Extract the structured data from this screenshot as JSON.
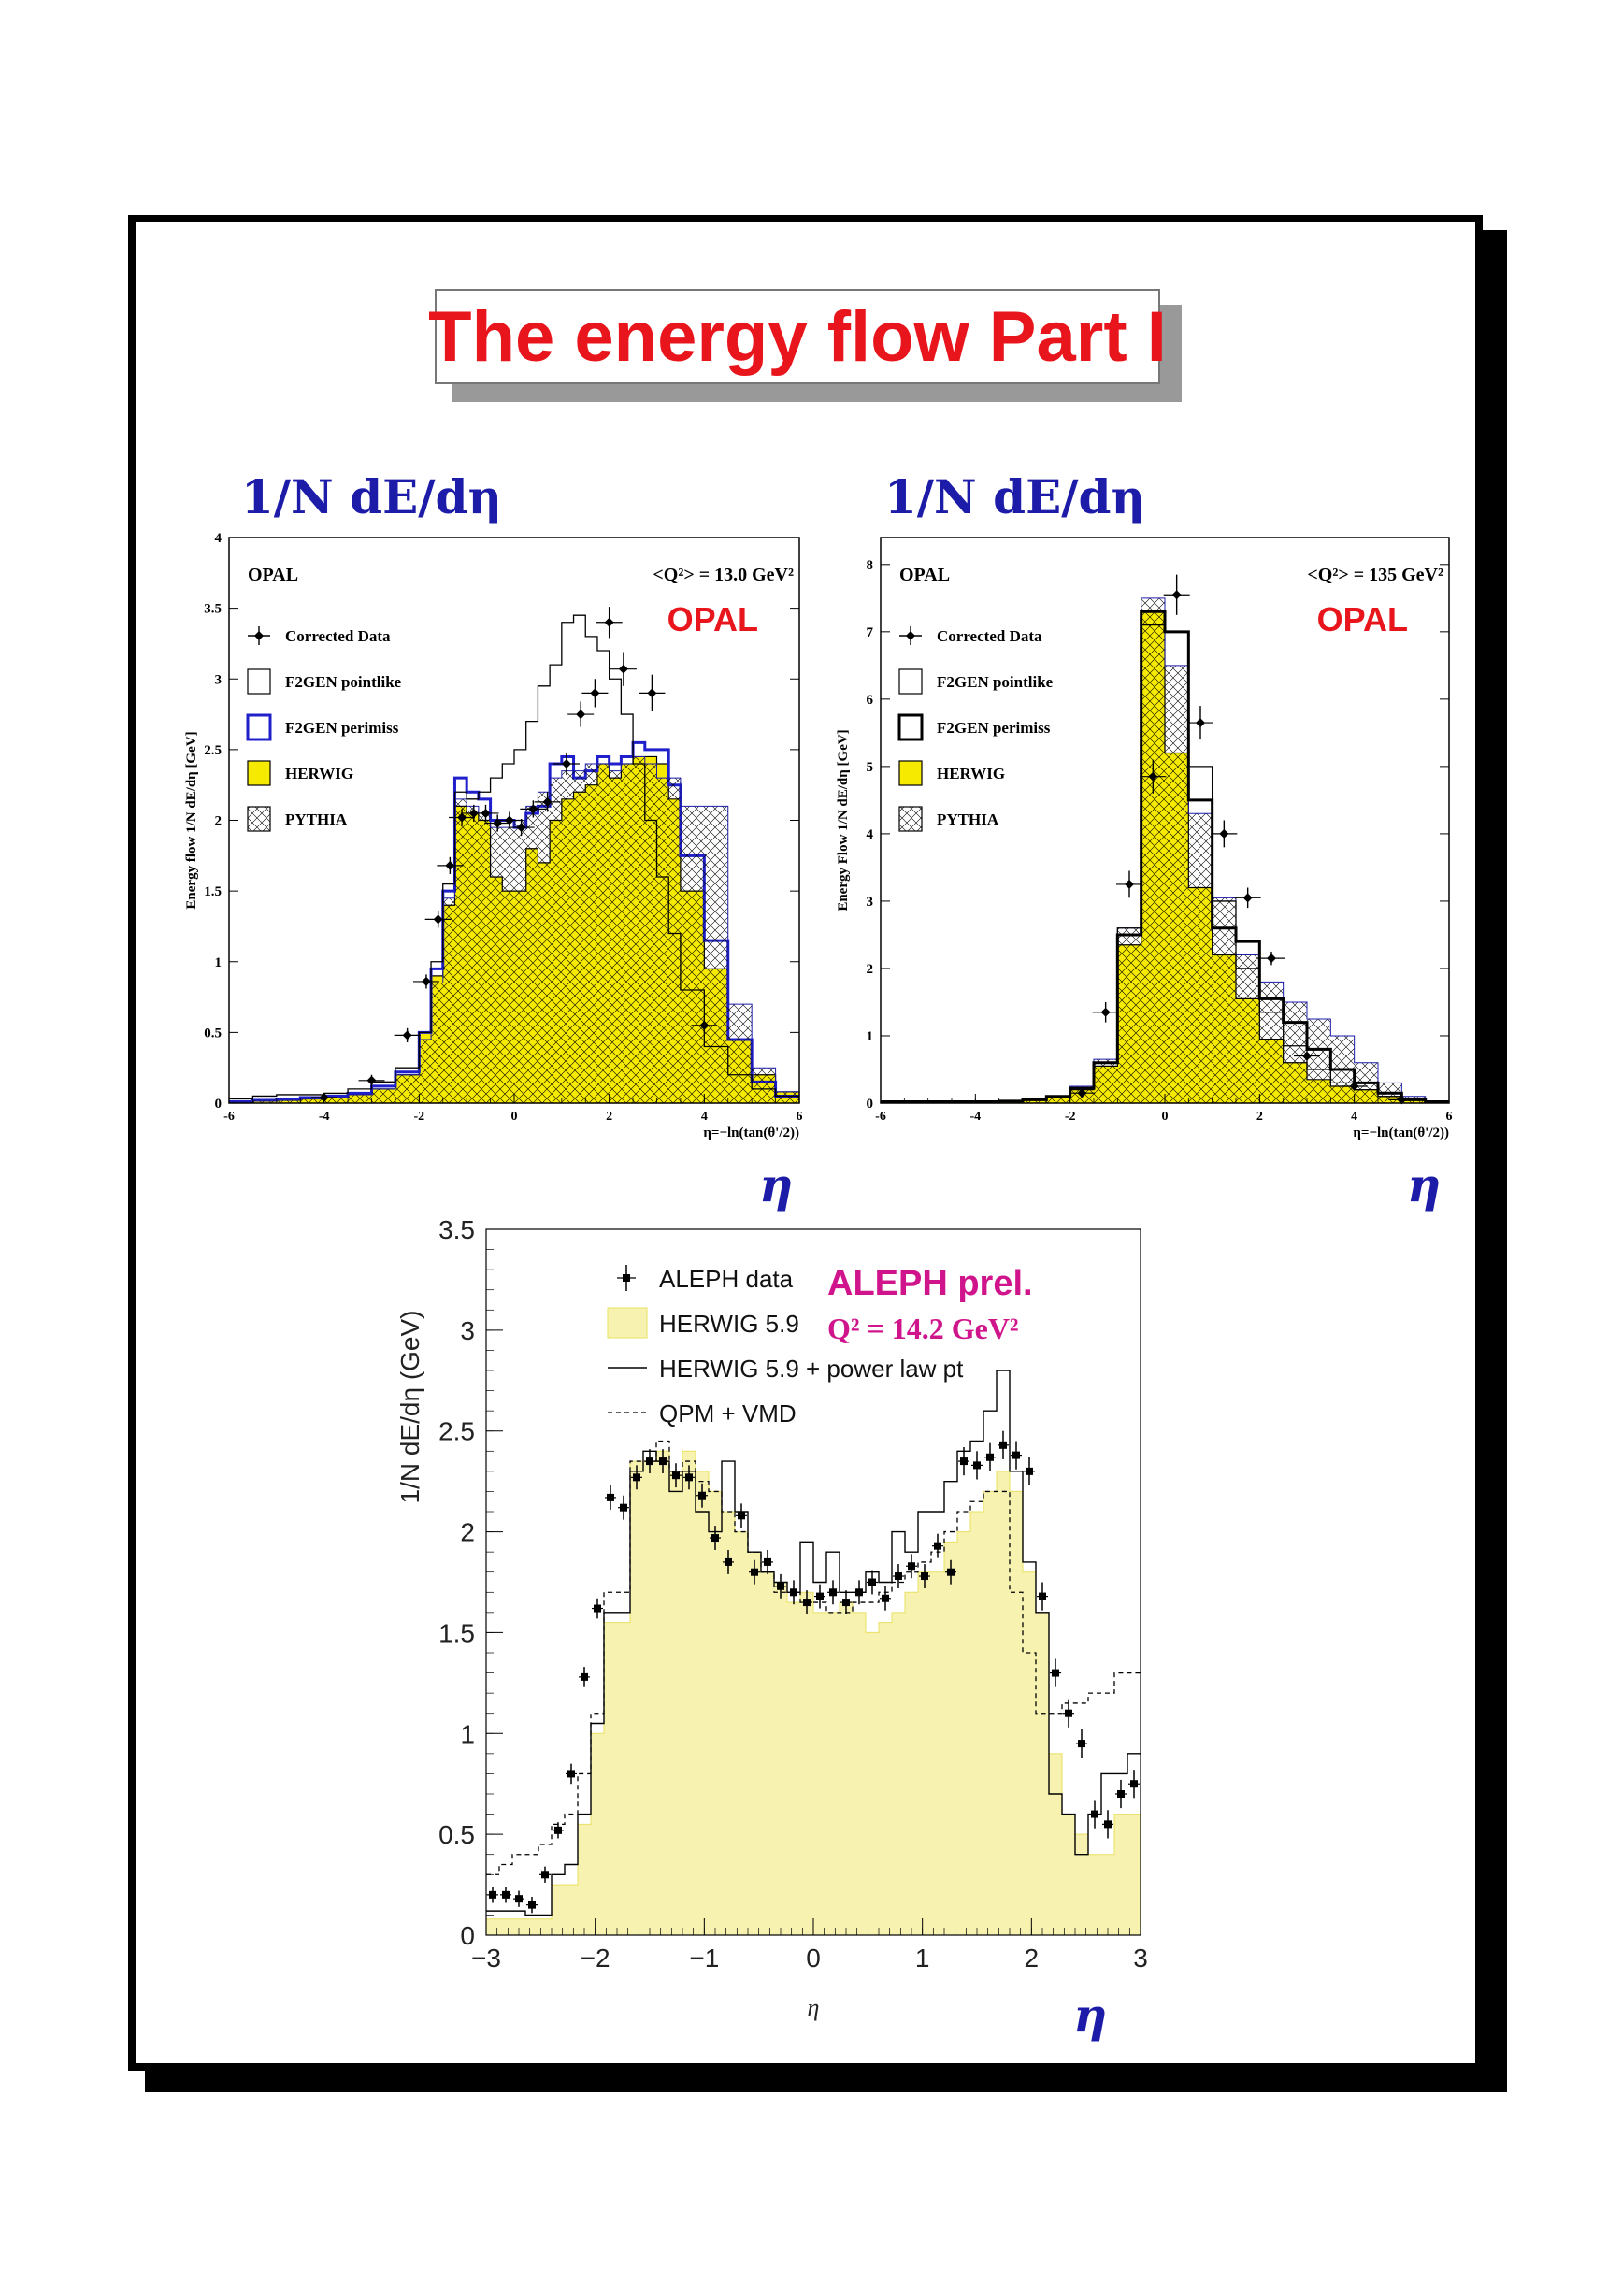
{
  "slide": {
    "title": "The energy flow Part I"
  },
  "headings": {
    "left": "1/N dE/dη",
    "right": "1/N dE/dη"
  },
  "eta_labels": [
    "η",
    "η",
    "η"
  ],
  "chart_data": [
    {
      "type": "bar",
      "experiment": "OPAL",
      "label": "OPAL",
      "q2": "<Q²> = 13.0 GeV²",
      "ylabel": "Energy flow   1/N dE/dη  [GeV]",
      "xlabel": "η=−ln(tan(θ'/2))",
      "xlim": [
        -6,
        6
      ],
      "ylim": [
        0,
        4
      ],
      "xticks": [
        "-6",
        "-4",
        "-2",
        "0",
        "2",
        "4",
        "6"
      ],
      "yticks": [
        "0",
        "0.5",
        "1",
        "1.5",
        "2",
        "2.5",
        "3",
        "3.5",
        "4"
      ],
      "legend": [
        "Corrected Data",
        "F2GEN pointlike",
        "F2GEN perimiss",
        "HERWIG",
        "PYTHIA"
      ],
      "bin_edges": [
        -6,
        -5.5,
        -5,
        -4.5,
        -4,
        -3.5,
        -3,
        -2.5,
        -2,
        -1.75,
        -1.5,
        -1.25,
        -1,
        -0.75,
        -0.5,
        -0.25,
        0,
        0.25,
        0.5,
        0.75,
        1,
        1.25,
        1.5,
        1.75,
        2,
        2.25,
        2.5,
        2.75,
        3,
        3.25,
        3.5,
        4,
        4.5,
        5,
        5.5,
        6
      ],
      "series": [
        {
          "name": "HERWIG",
          "values": [
            0.01,
            0.02,
            0.02,
            0.03,
            0.04,
            0.06,
            0.1,
            0.2,
            0.5,
            0.9,
            1.4,
            2.1,
            2.05,
            2.0,
            1.6,
            1.5,
            1.5,
            1.8,
            1.7,
            2.0,
            2.15,
            2.2,
            2.25,
            2.4,
            2.3,
            2.4,
            2.45,
            2.45,
            2.4,
            2.15,
            1.5,
            0.95,
            0.45,
            0.2,
            0.08
          ]
        },
        {
          "name": "F2GEN perimiss",
          "values": [
            0.01,
            0.02,
            0.03,
            0.04,
            0.05,
            0.07,
            0.12,
            0.22,
            0.5,
            0.95,
            1.5,
            2.3,
            2.2,
            2.15,
            2.0,
            2.0,
            1.95,
            2.05,
            2.1,
            2.4,
            2.45,
            2.3,
            2.35,
            2.45,
            2.4,
            2.45,
            2.55,
            2.5,
            2.5,
            2.25,
            1.75,
            1.15,
            0.45,
            0.15,
            0.05
          ]
        },
        {
          "name": "PYTHIA",
          "values": [
            0.01,
            0.02,
            0.02,
            0.03,
            0.04,
            0.06,
            0.1,
            0.2,
            0.45,
            0.85,
            1.45,
            2.15,
            2.1,
            2.05,
            1.95,
            1.95,
            2.0,
            2.1,
            2.2,
            2.3,
            2.35,
            2.35,
            2.4,
            2.4,
            2.35,
            2.4,
            2.45,
            2.4,
            2.3,
            2.3,
            2.1,
            2.1,
            0.7,
            0.25,
            0.08
          ]
        },
        {
          "name": "F2GEN pointlike",
          "values": [
            0.03,
            0.05,
            0.06,
            0.06,
            0.07,
            0.1,
            0.15,
            0.25,
            0.5,
            1.0,
            1.55,
            2.2,
            2.15,
            2.2,
            2.3,
            2.4,
            2.5,
            2.7,
            2.95,
            3.1,
            3.4,
            3.45,
            3.3,
            3.2,
            3.0,
            2.75,
            2.4,
            2.0,
            1.6,
            1.2,
            0.8,
            0.4,
            0.2,
            0.1,
            0.05
          ]
        }
      ],
      "data": {
        "name": "Corrected Data",
        "x": [
          -4.0,
          -3.0,
          -2.25,
          -1.85,
          -1.6,
          -1.35,
          -1.1,
          -0.85,
          -0.6,
          -0.35,
          -0.1,
          0.15,
          0.4,
          0.7,
          1.1,
          1.4,
          1.7,
          2.0,
          2.3,
          2.9,
          4.0
        ],
        "y": [
          0.04,
          0.16,
          0.48,
          0.86,
          1.3,
          1.68,
          2.02,
          2.05,
          2.05,
          1.98,
          2.0,
          1.95,
          2.08,
          2.13,
          2.4,
          2.75,
          2.9,
          3.4,
          3.07,
          2.9,
          0.55
        ],
        "yerr": [
          0.02,
          0.04,
          0.05,
          0.05,
          0.06,
          0.06,
          0.06,
          0.06,
          0.06,
          0.06,
          0.06,
          0.06,
          0.06,
          0.07,
          0.08,
          0.09,
          0.1,
          0.11,
          0.12,
          0.13,
          0.05
        ]
      }
    },
    {
      "type": "bar",
      "experiment": "OPAL",
      "label": "OPAL",
      "q2": "<Q²> = 135 GeV²",
      "ylabel": "Energy Flow   1/N dE/dη  [GeV]",
      "xlabel": "η=−ln(tan(θ'/2))",
      "xlim": [
        -6,
        6
      ],
      "ylim": [
        0,
        8.4
      ],
      "xticks": [
        "-6",
        "-4",
        "-2",
        "0",
        "2",
        "4",
        "6"
      ],
      "yticks": [
        "0",
        "1",
        "2",
        "3",
        "4",
        "5",
        "6",
        "7",
        "8"
      ],
      "legend": [
        "Corrected Data",
        "F2GEN pointlike",
        "F2GEN perimiss",
        "HERWIG",
        "PYTHIA"
      ],
      "bin_edges": [
        -6,
        -5.5,
        -5,
        -4.5,
        -4,
        -3.5,
        -3,
        -2.5,
        -2,
        -1.5,
        -1,
        -0.5,
        0,
        0.5,
        1,
        1.5,
        2,
        2.5,
        3,
        3.5,
        4,
        4.5,
        5,
        5.5,
        6
      ],
      "series": [
        {
          "name": "HERWIG",
          "values": [
            0.02,
            0.02,
            0.02,
            0.02,
            0.02,
            0.03,
            0.05,
            0.1,
            0.2,
            0.55,
            2.35,
            7.3,
            5.2,
            3.2,
            2.2,
            1.55,
            0.95,
            0.6,
            0.35,
            0.25,
            0.2,
            0.1,
            0.05,
            0.02
          ]
        },
        {
          "name": "PYTHIA",
          "values": [
            0.02,
            0.02,
            0.02,
            0.02,
            0.02,
            0.03,
            0.05,
            0.1,
            0.25,
            0.65,
            2.6,
            7.5,
            6.5,
            4.3,
            3.05,
            2.2,
            1.8,
            1.5,
            1.25,
            1.0,
            0.6,
            0.3,
            0.1,
            0.03
          ]
        },
        {
          "name": "F2GEN pointlike",
          "values": [
            0.02,
            0.02,
            0.02,
            0.02,
            0.02,
            0.03,
            0.05,
            0.1,
            0.22,
            0.6,
            2.6,
            7.1,
            7.0,
            5.0,
            3.0,
            2.0,
            1.35,
            0.85,
            0.5,
            0.3,
            0.2,
            0.1,
            0.05,
            0.02
          ]
        },
        {
          "name": "F2GEN perimiss",
          "values": [
            0.02,
            0.02,
            0.02,
            0.02,
            0.02,
            0.03,
            0.05,
            0.1,
            0.22,
            0.6,
            2.5,
            7.3,
            7.0,
            4.5,
            2.6,
            2.4,
            1.55,
            1.2,
            0.8,
            0.5,
            0.3,
            0.15,
            0.05,
            0.02
          ]
        }
      ],
      "data": {
        "name": "Corrected Data",
        "x": [
          -1.75,
          -1.25,
          -0.75,
          -0.25,
          0.25,
          0.75,
          1.25,
          1.75,
          2.25,
          3.0,
          4.0,
          5.0
        ],
        "y": [
          0.15,
          1.35,
          3.25,
          4.85,
          7.55,
          5.65,
          4.0,
          3.05,
          2.15,
          0.7,
          0.25,
          0.05
        ],
        "yerr": [
          0.05,
          0.15,
          0.2,
          0.25,
          0.3,
          0.25,
          0.2,
          0.15,
          0.1,
          0.05,
          0.05,
          0.02
        ]
      }
    },
    {
      "type": "bar",
      "experiment": "ALEPH",
      "label": "ALEPH prel.",
      "q2": "Q² = 14.2 GeV²",
      "ylabel": "1/N dE/dη (GeV)",
      "xlabel": "η",
      "xlim": [
        -3,
        3
      ],
      "ylim": [
        0,
        3.5
      ],
      "xticks": [
        "−3",
        "−2",
        "−1",
        "0",
        "1",
        "2",
        "3"
      ],
      "yticks": [
        "0",
        "0.5",
        "1",
        "1.5",
        "2",
        "2.5",
        "3",
        "3.5"
      ],
      "legend": [
        "ALEPH data",
        "HERWIG 5.9",
        "HERWIG 5.9 + power law pt",
        "QPM + VMD"
      ],
      "series": [
        {
          "name": "HERWIG 5.9",
          "values": [
            0.08,
            0.08,
            0.08,
            0.08,
            0.08,
            0.25,
            0.25,
            0.55,
            1.0,
            1.55,
            1.55,
            2.35,
            2.35,
            2.4,
            2.3,
            2.4,
            2.3,
            2.2,
            2.1,
            2.0,
            1.9,
            1.8,
            1.75,
            1.65,
            1.7,
            1.6,
            1.6,
            1.65,
            1.6,
            1.5,
            1.55,
            1.6,
            1.7,
            1.8,
            1.8,
            1.95,
            2.0,
            2.1,
            2.2,
            2.3,
            2.2,
            1.8,
            1.6,
            0.9,
            0.6,
            0.5,
            0.4,
            0.4,
            0.6,
            0.6
          ]
        },
        {
          "name": "HERWIG 5.9 + power law pt",
          "values": [
            0.12,
            0.12,
            0.12,
            0.1,
            0.1,
            0.3,
            0.35,
            0.6,
            1.05,
            1.6,
            1.6,
            2.3,
            2.4,
            2.35,
            2.2,
            2.3,
            2.1,
            2.0,
            2.35,
            2.1,
            1.9,
            1.8,
            1.75,
            1.7,
            1.95,
            1.75,
            1.9,
            1.7,
            1.7,
            1.8,
            1.75,
            2.0,
            1.9,
            2.1,
            2.1,
            2.25,
            2.4,
            2.45,
            2.6,
            2.8,
            2.3,
            1.85,
            1.6,
            0.7,
            0.6,
            0.4,
            0.6,
            0.8,
            0.8,
            0.9
          ]
        },
        {
          "name": "QPM + VMD",
          "values": [
            0.3,
            0.35,
            0.4,
            0.4,
            0.45,
            0.55,
            0.6,
            0.8,
            1.1,
            1.7,
            1.7,
            2.35,
            2.35,
            2.45,
            2.3,
            2.35,
            2.25,
            2.2,
            2.1,
            2.0,
            1.9,
            1.8,
            1.7,
            1.7,
            1.65,
            1.65,
            1.6,
            1.6,
            1.65,
            1.65,
            1.7,
            1.75,
            1.8,
            1.85,
            1.9,
            2.0,
            2.1,
            2.15,
            2.2,
            2.2,
            1.7,
            1.4,
            1.1,
            1.1,
            1.15,
            1.15,
            1.2,
            1.2,
            1.3,
            1.3
          ]
        }
      ],
      "data": {
        "name": "ALEPH data",
        "x": [
          -2.94,
          -2.82,
          -2.7,
          -2.58,
          -2.46,
          -2.34,
          -2.22,
          -2.1,
          -1.98,
          -1.86,
          -1.74,
          -1.62,
          -1.5,
          -1.38,
          -1.26,
          -1.14,
          -1.02,
          -0.9,
          -0.78,
          -0.66,
          -0.54,
          -0.42,
          -0.3,
          -0.18,
          -0.06,
          0.06,
          0.18,
          0.3,
          0.42,
          0.54,
          0.66,
          0.78,
          0.9,
          1.02,
          1.14,
          1.26,
          1.38,
          1.5,
          1.62,
          1.74,
          1.86,
          1.98,
          2.1,
          2.22,
          2.34,
          2.46,
          2.58,
          2.7,
          2.82,
          2.94
        ],
        "y": [
          0.2,
          0.2,
          0.18,
          0.15,
          0.3,
          0.52,
          0.8,
          1.28,
          1.62,
          2.17,
          2.12,
          2.27,
          2.35,
          2.35,
          2.28,
          2.27,
          2.18,
          1.97,
          1.85,
          2.08,
          1.8,
          1.85,
          1.73,
          1.7,
          1.65,
          1.68,
          1.7,
          1.65,
          1.7,
          1.75,
          1.67,
          1.78,
          1.83,
          1.78,
          1.93,
          1.8,
          2.35,
          2.33,
          2.37,
          2.43,
          2.38,
          2.3,
          1.68,
          1.3,
          1.1,
          0.95,
          0.6,
          0.55,
          0.7,
          0.75
        ],
        "yerr": [
          0.04,
          0.04,
          0.04,
          0.04,
          0.04,
          0.04,
          0.05,
          0.05,
          0.05,
          0.06,
          0.06,
          0.06,
          0.06,
          0.06,
          0.06,
          0.06,
          0.06,
          0.06,
          0.06,
          0.06,
          0.06,
          0.06,
          0.06,
          0.06,
          0.06,
          0.06,
          0.06,
          0.06,
          0.06,
          0.06,
          0.06,
          0.06,
          0.06,
          0.06,
          0.06,
          0.06,
          0.07,
          0.07,
          0.07,
          0.07,
          0.07,
          0.07,
          0.07,
          0.07,
          0.07,
          0.07,
          0.07,
          0.07,
          0.07,
          0.07
        ]
      }
    }
  ],
  "colors": {
    "title_red": "#e8161c",
    "heading_blue": "#1c1ca8",
    "opal_label_red": "#e8161c",
    "aleph_magenta": "#d0158c",
    "herwig_yellow": "#f5ea00",
    "aleph_fill": "#f7f2b0",
    "perimiss_blue": "#1f1fcc"
  }
}
